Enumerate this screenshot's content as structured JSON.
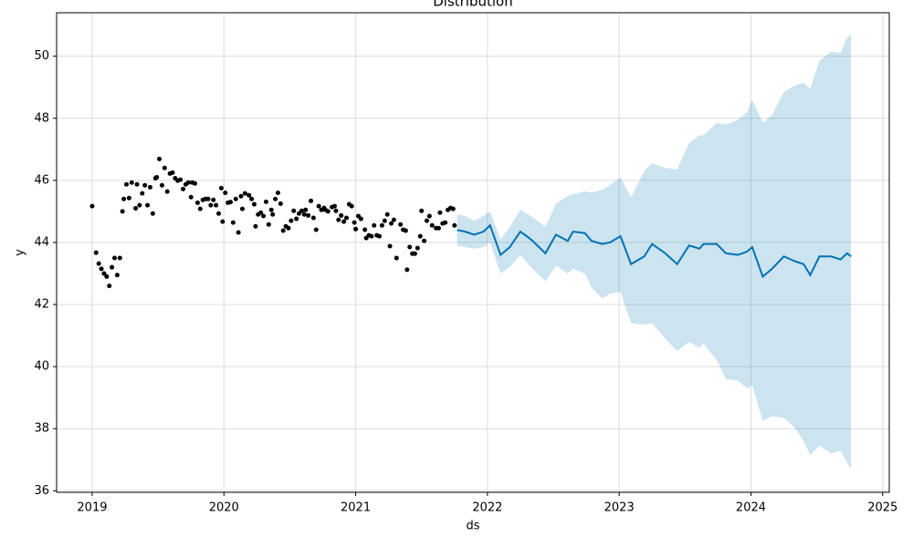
{
  "chart_data": {
    "type": "forecast",
    "title": "Distribution",
    "x_label": "ds",
    "y_label": "y",
    "xlim": [
      2018.73,
      2025.05
    ],
    "ylim": [
      35.95,
      51.4
    ],
    "xticks": [
      2019,
      2020,
      2021,
      2022,
      2023,
      2024,
      2025
    ],
    "yticks": [
      36,
      38,
      40,
      42,
      44,
      46,
      48,
      50
    ],
    "grid": true,
    "series": [
      {
        "type": "band",
        "color": "#0072b2",
        "x": [
          2021.77,
          2021.83,
          2021.9,
          2021.97,
          2022.02,
          2022.1,
          2022.17,
          2022.25,
          2022.33,
          2022.44,
          2022.52,
          2022.61,
          2022.65,
          2022.74,
          2022.79,
          2022.87,
          2022.93,
          2023.01,
          2023.09,
          2023.19,
          2023.25,
          2023.35,
          2023.44,
          2023.53,
          2023.61,
          2023.64,
          2023.74,
          2023.81,
          2023.9,
          2023.97,
          2024.01,
          2024.09,
          2024.16,
          2024.25,
          2024.33,
          2024.4,
          2024.45,
          2024.52,
          2024.61,
          2024.68,
          2024.73,
          2024.76
        ],
        "upper": [
          44.9,
          44.85,
          44.7,
          44.85,
          45.0,
          44.1,
          44.5,
          45.05,
          44.85,
          44.5,
          45.25,
          45.5,
          45.55,
          45.65,
          45.6,
          45.7,
          45.85,
          46.1,
          45.45,
          46.3,
          46.55,
          46.4,
          46.35,
          47.2,
          47.45,
          47.45,
          47.85,
          47.8,
          47.95,
          48.2,
          48.6,
          47.85,
          48.1,
          48.85,
          49.05,
          49.15,
          48.95,
          49.85,
          50.15,
          50.1,
          50.6,
          50.7
        ],
        "lower": [
          43.9,
          43.85,
          43.8,
          43.85,
          44.0,
          43.0,
          43.2,
          43.6,
          43.2,
          42.75,
          43.25,
          43.0,
          43.15,
          43.0,
          42.55,
          42.2,
          42.35,
          42.4,
          41.4,
          41.35,
          41.4,
          40.9,
          40.5,
          40.8,
          40.6,
          40.75,
          40.2,
          39.6,
          39.55,
          39.3,
          39.4,
          38.25,
          38.4,
          38.35,
          38.05,
          37.6,
          37.15,
          37.45,
          37.2,
          37.3,
          36.9,
          36.7
        ]
      },
      {
        "type": "line",
        "color": "#0072b2",
        "x": [
          2021.77,
          2021.83,
          2021.9,
          2021.97,
          2022.02,
          2022.1,
          2022.17,
          2022.25,
          2022.33,
          2022.44,
          2022.52,
          2022.61,
          2022.65,
          2022.74,
          2022.79,
          2022.87,
          2022.93,
          2023.01,
          2023.09,
          2023.19,
          2023.25,
          2023.35,
          2023.44,
          2023.53,
          2023.61,
          2023.64,
          2023.74,
          2023.81,
          2023.9,
          2023.97,
          2024.01,
          2024.09,
          2024.16,
          2024.25,
          2024.33,
          2024.4,
          2024.45,
          2024.52,
          2024.61,
          2024.68,
          2024.73,
          2024.76
        ],
        "values": [
          44.4,
          44.35,
          44.25,
          44.35,
          44.55,
          43.6,
          43.85,
          44.35,
          44.1,
          43.65,
          44.25,
          44.05,
          44.35,
          44.3,
          44.05,
          43.95,
          44.0,
          44.2,
          43.3,
          43.55,
          43.95,
          43.65,
          43.3,
          43.9,
          43.8,
          43.95,
          43.95,
          43.65,
          43.6,
          43.7,
          43.85,
          42.9,
          43.15,
          43.55,
          43.4,
          43.3,
          42.95,
          43.55,
          43.55,
          43.45,
          43.65,
          43.55
        ]
      },
      {
        "type": "scatter",
        "color": "#000000",
        "x": [
          2019.0,
          2019.03,
          2019.05,
          2019.07,
          2019.09,
          2019.11,
          2019.13,
          2019.15,
          2019.17,
          2019.19,
          2019.21,
          2019.23,
          2019.24,
          2019.26,
          2019.28,
          2019.3,
          2019.33,
          2019.34,
          2019.36,
          2019.38,
          2019.4,
          2019.42,
          2019.44,
          2019.46,
          2019.48,
          2019.49,
          2019.51,
          2019.53,
          2019.55,
          2019.57,
          2019.59,
          2019.61,
          2019.63,
          2019.65,
          2019.67,
          2019.69,
          2019.71,
          2019.73,
          2019.75,
          2019.76,
          2019.78,
          2019.8,
          2019.82,
          2019.84,
          2019.86,
          2019.88,
          2019.9,
          2019.92,
          2019.94,
          2019.96,
          2019.98,
          2019.99,
          2020.01,
          2020.03,
          2020.05,
          2020.07,
          2020.09,
          2020.11,
          2020.13,
          2020.14,
          2020.16,
          2020.19,
          2020.21,
          2020.23,
          2020.24,
          2020.26,
          2020.28,
          2020.3,
          2020.32,
          2020.34,
          2020.36,
          2020.37,
          2020.39,
          2020.41,
          2020.43,
          2020.45,
          2020.47,
          2020.49,
          2020.51,
          2020.53,
          2020.55,
          2020.57,
          2020.59,
          2020.61,
          2020.62,
          2020.64,
          2020.66,
          2020.68,
          2020.7,
          2020.72,
          2020.74,
          2020.76,
          2020.77,
          2020.79,
          2020.82,
          2020.84,
          2020.85,
          2020.87,
          2020.89,
          2020.91,
          2020.93,
          2020.95,
          2020.97,
          2020.99,
          2021.0,
          2021.02,
          2021.04,
          2021.07,
          2021.08,
          2021.1,
          2021.12,
          2021.14,
          2021.16,
          2021.18,
          2021.2,
          2021.22,
          2021.24,
          2021.26,
          2021.27,
          2021.29,
          2021.31,
          2021.34,
          2021.36,
          2021.38,
          2021.39,
          2021.41,
          2021.43,
          2021.45,
          2021.47,
          2021.49,
          2021.5,
          2021.52,
          2021.54,
          2021.56,
          2021.58,
          2021.61,
          2021.63,
          2021.64,
          2021.66,
          2021.68,
          2021.7,
          2021.72,
          2021.74,
          2021.75
        ],
        "values": [
          45.17,
          43.67,
          43.32,
          43.15,
          43.0,
          42.9,
          42.6,
          43.2,
          43.5,
          42.95,
          43.5,
          45.0,
          45.4,
          45.87,
          45.43,
          45.93,
          45.1,
          45.87,
          45.2,
          45.58,
          45.84,
          45.2,
          45.78,
          44.93,
          46.07,
          46.1,
          46.69,
          45.84,
          46.4,
          45.64,
          46.22,
          46.25,
          46.07,
          45.99,
          46.02,
          45.72,
          45.87,
          45.93,
          45.46,
          45.93,
          45.9,
          45.28,
          45.08,
          45.37,
          45.4,
          45.4,
          45.2,
          45.37,
          45.2,
          44.93,
          45.75,
          44.67,
          45.6,
          45.28,
          45.3,
          44.64,
          45.4,
          44.32,
          45.49,
          45.08,
          45.58,
          45.52,
          45.4,
          45.23,
          44.52,
          44.9,
          44.96,
          44.85,
          45.31,
          44.58,
          45.05,
          44.9,
          45.4,
          45.6,
          45.25,
          44.38,
          44.52,
          44.46,
          44.7,
          45.02,
          44.76,
          44.93,
          45.02,
          44.9,
          45.05,
          44.87,
          45.34,
          44.79,
          44.41,
          45.17,
          45.05,
          45.11,
          45.05,
          45.0,
          45.14,
          45.17,
          45.02,
          44.73,
          44.87,
          44.67,
          44.79,
          45.23,
          45.17,
          44.64,
          44.43,
          44.85,
          44.76,
          44.41,
          44.14,
          44.23,
          44.2,
          44.55,
          44.23,
          44.2,
          44.55,
          44.7,
          44.9,
          43.88,
          44.61,
          44.73,
          43.5,
          44.58,
          44.41,
          44.38,
          43.12,
          43.85,
          43.64,
          43.64,
          43.82,
          44.2,
          45.02,
          44.05,
          44.7,
          44.85,
          44.55,
          44.46,
          44.46,
          44.96,
          44.61,
          44.64,
          45.05,
          45.11,
          45.08,
          44.55
        ]
      }
    ]
  }
}
